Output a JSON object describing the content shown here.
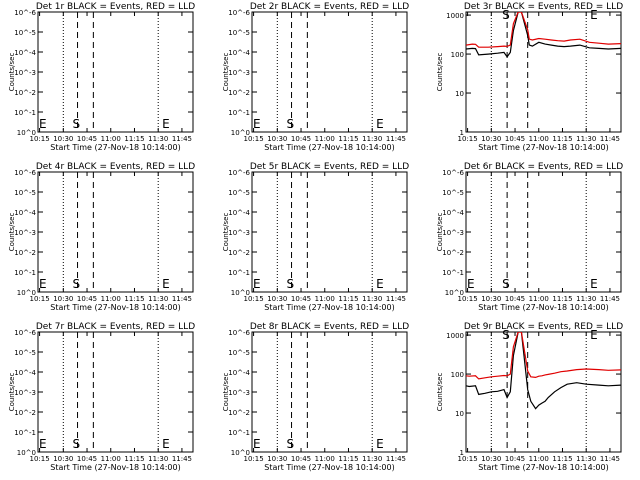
{
  "figure": {
    "xticks": [
      "10:15",
      "10:30",
      "10:45",
      "11:00",
      "11:15",
      "11:30",
      "11:45"
    ],
    "xlabel": "Start Time (27-Nov-18 10:14:00)",
    "ylabel": "Counts/sec",
    "start_label": "S",
    "end_label": "E"
  },
  "chart_data": [
    {
      "type": "line",
      "title": "Det 1r BLACK = Events, RED = LLD",
      "log_y": true,
      "ylim": [
        1,
        10000
      ],
      "yticks": [
        "10^0",
        "10^-1",
        "10^-2",
        "10^-3",
        "10^-4",
        "10^-5",
        "10^-6"
      ],
      "series": []
    },
    {
      "type": "line",
      "title": "Det 2r BLACK = Events, RED = LLD",
      "log_y": true,
      "ylim": [
        1,
        10000
      ],
      "yticks": [
        "10^0",
        "10^-1",
        "10^-2",
        "10^-3",
        "10^-4",
        "10^-5",
        "10^-6"
      ],
      "series": []
    },
    {
      "type": "line",
      "title": "Det 3r BLACK = Events, RED = LLD",
      "log_y": true,
      "ylim": [
        1,
        1200
      ],
      "yticks": [
        "1",
        "10",
        "100",
        "1000"
      ],
      "series": [
        {
          "color": "#000000",
          "x": [
            "10:14",
            "10:18",
            "10:20",
            "10:22",
            "10:28",
            "10:34",
            "10:38",
            "10:40",
            "10:42",
            "10:44",
            "10:47",
            "10:49",
            "10:53",
            "10:54",
            "10:56",
            "11:00",
            "11:04",
            "11:08",
            "11:12",
            "11:16",
            "11:20",
            "11:26",
            "11:32",
            "11:38",
            "11:44",
            "11:52"
          ],
          "y": [
            135,
            140,
            138,
            95,
            100,
            105,
            110,
            85,
            110,
            400,
            1200,
            1200,
            300,
            170,
            160,
            200,
            180,
            170,
            160,
            155,
            160,
            170,
            145,
            140,
            135,
            140
          ]
        },
        {
          "color": "#e00000",
          "x": [
            "10:14",
            "10:18",
            "10:20",
            "10:22",
            "10:28",
            "10:34",
            "10:38",
            "10:40",
            "10:42",
            "10:44",
            "10:47",
            "10:49",
            "10:53",
            "10:54",
            "10:56",
            "11:00",
            "11:04",
            "11:08",
            "11:12",
            "11:16",
            "11:20",
            "11:26",
            "11:32",
            "11:38",
            "11:44",
            "11:52"
          ],
          "y": [
            170,
            180,
            178,
            150,
            150,
            155,
            160,
            158,
            170,
            600,
            1200,
            1200,
            420,
            240,
            230,
            250,
            240,
            230,
            220,
            215,
            230,
            240,
            200,
            190,
            180,
            185
          ]
        }
      ]
    },
    {
      "type": "line",
      "title": "Det 4r BLACK = Events, RED = LLD",
      "log_y": true,
      "ylim": [
        1,
        10000
      ],
      "yticks": [
        "10^0",
        "10^-1",
        "10^-2",
        "10^-3",
        "10^-4",
        "10^-5",
        "10^-6"
      ],
      "series": []
    },
    {
      "type": "line",
      "title": "Det 5r BLACK = Events, RED = LLD",
      "log_y": true,
      "ylim": [
        1,
        10000
      ],
      "yticks": [
        "10^0",
        "10^-1",
        "10^-2",
        "10^-3",
        "10^-4",
        "10^-5",
        "10^-6"
      ],
      "series": []
    },
    {
      "type": "line",
      "title": "Det 6r BLACK = Events, RED = LLD",
      "log_y": true,
      "ylim": [
        1,
        10000
      ],
      "yticks": [
        "10^0",
        "10^-1",
        "10^-2",
        "10^-3",
        "10^-4",
        "10^-5",
        "10^-6"
      ],
      "series": []
    },
    {
      "type": "line",
      "title": "Det 7r BLACK = Events, RED = LLD",
      "log_y": true,
      "ylim": [
        1,
        10000
      ],
      "yticks": [
        "10^0",
        "10^-1",
        "10^-2",
        "10^-3",
        "10^-4",
        "10^-5",
        "10^-6"
      ],
      "series": []
    },
    {
      "type": "line",
      "title": "Det 8r BLACK = Events, RED = LLD",
      "log_y": true,
      "ylim": [
        1,
        10000
      ],
      "yticks": [
        "10^0",
        "10^-1",
        "10^-2",
        "10^-3",
        "10^-4",
        "10^-5",
        "10^-6"
      ],
      "series": []
    },
    {
      "type": "line",
      "title": "Det 9r BLACK = Events, RED = LLD",
      "log_y": true,
      "ylim": [
        1,
        1200
      ],
      "yticks": [
        "1",
        "10",
        "100",
        "1000"
      ],
      "series": [
        {
          "color": "#000000",
          "x": [
            "10:14",
            "10:16",
            "10:20",
            "10:22",
            "10:26",
            "10:30",
            "10:34",
            "10:38",
            "10:40",
            "10:42",
            "10:44",
            "10:47",
            "10:49",
            "10:53",
            "10:55",
            "10:58",
            "11:00",
            "11:02",
            "11:04",
            "11:06",
            "11:10",
            "11:14",
            "11:18",
            "11:24",
            "11:30",
            "11:38",
            "11:44",
            "11:52"
          ],
          "y": [
            50,
            48,
            50,
            30,
            32,
            35,
            36,
            40,
            25,
            35,
            300,
            1200,
            1200,
            40,
            20,
            13,
            16,
            18,
            20,
            25,
            35,
            45,
            55,
            60,
            55,
            52,
            50,
            52
          ]
        },
        {
          "color": "#e00000",
          "x": [
            "10:14",
            "10:16",
            "10:20",
            "10:22",
            "10:26",
            "10:30",
            "10:34",
            "10:38",
            "10:40",
            "10:42",
            "10:44",
            "10:47",
            "10:49",
            "10:53",
            "10:55",
            "10:58",
            "11:00",
            "11:02",
            "11:04",
            "11:06",
            "11:10",
            "11:14",
            "11:18",
            "11:24",
            "11:30",
            "11:38",
            "11:44",
            "11:52"
          ],
          "y": [
            90,
            88,
            90,
            75,
            80,
            85,
            88,
            92,
            90,
            100,
            500,
            1200,
            1200,
            120,
            85,
            82,
            88,
            90,
            95,
            98,
            105,
            115,
            120,
            130,
            135,
            130,
            125,
            128
          ]
        }
      ]
    }
  ]
}
